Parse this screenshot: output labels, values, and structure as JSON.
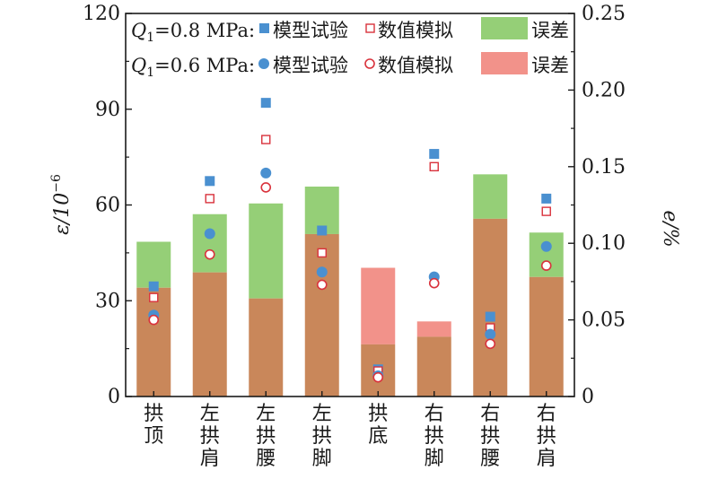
{
  "chart_data": {
    "type": "bar",
    "categories": [
      "拱顶",
      "左拱肩",
      "左拱腰",
      "左拱脚",
      "拱底",
      "右拱脚",
      "右拱腰",
      "右拱肩"
    ],
    "ylabel_base": "ε/10",
    "ylabel_exp": "−6",
    "y2label": "e/%",
    "ylim": [
      0,
      120
    ],
    "y2lim": [
      0,
      0.25
    ],
    "y_ticks": [
      "0",
      "30",
      "60",
      "90",
      "120"
    ],
    "y2_ticks": [
      "0",
      "0.05",
      "0.10",
      "0.15",
      "0.20",
      "0.25"
    ],
    "legend_placement": "top",
    "legend": {
      "row1_prefix": "Q",
      "row1_sub": "1",
      "row1_value": "=0.8 MPa:",
      "row2_prefix": "Q",
      "row2_sub": "1",
      "row2_value": "=0.6 MPa:",
      "test_label": "模型试验",
      "sim_label": "数值模拟",
      "error_label": "误差"
    },
    "series": [
      {
        "name": "模型试验",
        "group": "Q1=0.8 MPa",
        "axis": "left",
        "marker": "square-filled",
        "color": "#4a90d0",
        "values": [
          34.5,
          67.5,
          92,
          52,
          8.5,
          76,
          25,
          62
        ]
      },
      {
        "name": "数值模拟",
        "group": "Q1=0.8 MPa",
        "axis": "left",
        "marker": "square-open",
        "color": "#d9323c",
        "values": [
          31,
          62,
          80.5,
          45,
          8,
          72,
          21.5,
          58
        ]
      },
      {
        "name": "模型试验",
        "group": "Q1=0.6 MPa",
        "axis": "left",
        "marker": "circle-filled",
        "color": "#4a90d0",
        "values": [
          25.5,
          51,
          70,
          39,
          6.5,
          37.5,
          19.5,
          47
        ]
      },
      {
        "name": "数值模拟",
        "group": "Q1=0.6 MPa",
        "axis": "left",
        "marker": "circle-open",
        "color": "#d9323c",
        "values": [
          24,
          44.5,
          65.5,
          35,
          6,
          35.5,
          16.5,
          41
        ]
      },
      {
        "name": "误差",
        "group": "Q1=0.8 MPa",
        "axis": "right",
        "type": "bar",
        "color": "#95cf77",
        "values": [
          0.101,
          0.119,
          0.126,
          0.137,
          0.034,
          0.039,
          0.145,
          0.107
        ]
      },
      {
        "name": "误差",
        "group": "Q1=0.6 MPa",
        "axis": "right",
        "type": "bar",
        "color": "#f2928a",
        "values": [
          0.071,
          0.081,
          0.064,
          0.106,
          0.084,
          0.049,
          0.116,
          0.078
        ]
      }
    ]
  }
}
